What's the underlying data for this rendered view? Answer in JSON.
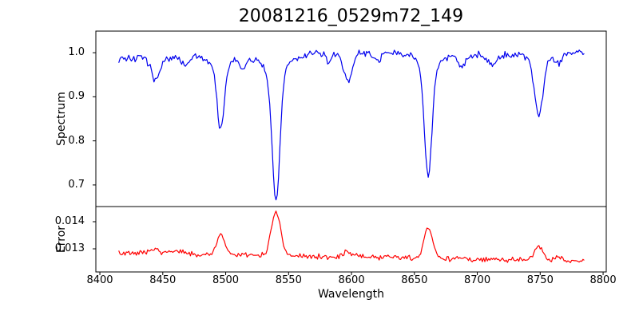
{
  "figure": {
    "title": "20081216_0529m72_149",
    "background": "#ffffff",
    "frame_color": "#000000"
  },
  "axes": {
    "xlabel": "Wavelength",
    "xlim": [
      8396.8,
      8802.5
    ],
    "xticks": [
      8400,
      8450,
      8500,
      8550,
      8600,
      8650,
      8700,
      8750,
      8800
    ],
    "xtick_labels": [
      "8400",
      "8450",
      "8500",
      "8550",
      "8600",
      "8650",
      "8700",
      "8750",
      "8800"
    ]
  },
  "chart_data": [
    {
      "type": "line",
      "panel": "spectrum",
      "title": "20081216_0529m72_149",
      "ylabel": "Spectrum",
      "xlabel": "Wavelength",
      "series_color": "#0000ee",
      "xlim": [
        8396.8,
        8802.5
      ],
      "ylim": [
        0.651,
        1.049
      ],
      "yticks": [
        1.0,
        0.9,
        0.8,
        0.7
      ],
      "ytick_labels": [
        "1.0",
        "0.9",
        "0.8",
        "0.7"
      ],
      "grid": false,
      "legend": "none",
      "data_x_start": 8415,
      "data_x_end": 8785,
      "sample_step": 1.0,
      "continuum": {
        "base": 0.987,
        "bumps": [
          {
            "center": 8625,
            "amp": 0.013,
            "sigma": 70
          },
          {
            "center": 8790,
            "amp": 0.012,
            "sigma": 35
          }
        ]
      },
      "noise_amplitude": 0.0055,
      "absorption_lines": [
        {
          "center": 8444,
          "depth": 0.052,
          "sigma": 3.0
        },
        {
          "center": 8468,
          "depth": 0.02,
          "sigma": 2.5
        },
        {
          "center": 8496,
          "depth": 0.14,
          "sigma": 2.7
        },
        {
          "center": 8496,
          "depth": 0.025,
          "sigma": 6.5
        },
        {
          "center": 8514,
          "depth": 0.03,
          "sigma": 2.5
        },
        {
          "center": 8540,
          "depth": 0.29,
          "sigma": 3.1
        },
        {
          "center": 8540,
          "depth": 0.038,
          "sigma": 9.0
        },
        {
          "center": 8582,
          "depth": 0.02,
          "sigma": 2.5
        },
        {
          "center": 8597,
          "depth": 0.062,
          "sigma": 3.5
        },
        {
          "center": 8621,
          "depth": 0.018,
          "sigma": 2.5
        },
        {
          "center": 8661,
          "depth": 0.245,
          "sigma": 2.9
        },
        {
          "center": 8661,
          "depth": 0.035,
          "sigma": 8.0
        },
        {
          "center": 8688,
          "depth": 0.028,
          "sigma": 3.0
        },
        {
          "center": 8712,
          "depth": 0.02,
          "sigma": 3.0
        },
        {
          "center": 8749,
          "depth": 0.135,
          "sigma": 3.6
        },
        {
          "center": 8764,
          "depth": 0.022,
          "sigma": 2.5
        }
      ],
      "key_points_read_from_plot": [
        {
          "x": 8444,
          "y": 0.93
        },
        {
          "x": 8496,
          "y": 0.83
        },
        {
          "x": 8540,
          "y": 0.67
        },
        {
          "x": 8597,
          "y": 0.93
        },
        {
          "x": 8661,
          "y": 0.72
        },
        {
          "x": 8749,
          "y": 0.86
        }
      ]
    },
    {
      "type": "line",
      "panel": "error",
      "ylabel": "Error",
      "xlabel": "Wavelength",
      "series_color": "#ff0000",
      "xlim": [
        8396.8,
        8802.5
      ],
      "ylim": [
        0.012147,
        0.014559
      ],
      "yticks": [
        0.014,
        0.013
      ],
      "ytick_labels": [
        "0.014",
        "0.013"
      ],
      "grid": false,
      "legend": "none",
      "data_x_start": 8415,
      "data_x_end": 8785,
      "sample_step": 1.0,
      "baseline": {
        "start": 0.01285,
        "end": 0.01255
      },
      "noise_amplitude": 6e-05,
      "error_peaks": [
        {
          "center": 8444,
          "amp": 0.00012,
          "sigma": 4.0
        },
        {
          "center": 8462,
          "amp": 8e-05,
          "sigma": 5.0
        },
        {
          "center": 8496,
          "amp": 0.00072,
          "sigma": 3.2
        },
        {
          "center": 8540,
          "amp": 0.00162,
          "sigma": 3.6
        },
        {
          "center": 8597,
          "amp": 0.0002,
          "sigma": 4.0
        },
        {
          "center": 8661,
          "amp": 0.0011,
          "sigma": 3.4
        },
        {
          "center": 8749,
          "amp": 0.0005,
          "sigma": 3.5
        },
        {
          "center": 8764,
          "amp": 0.00012,
          "sigma": 3.0
        }
      ],
      "key_points_read_from_plot": [
        {
          "x": 8496,
          "y": 0.0136
        },
        {
          "x": 8540,
          "y": 0.0144
        },
        {
          "x": 8661,
          "y": 0.0138
        },
        {
          "x": 8749,
          "y": 0.0131
        }
      ]
    }
  ]
}
